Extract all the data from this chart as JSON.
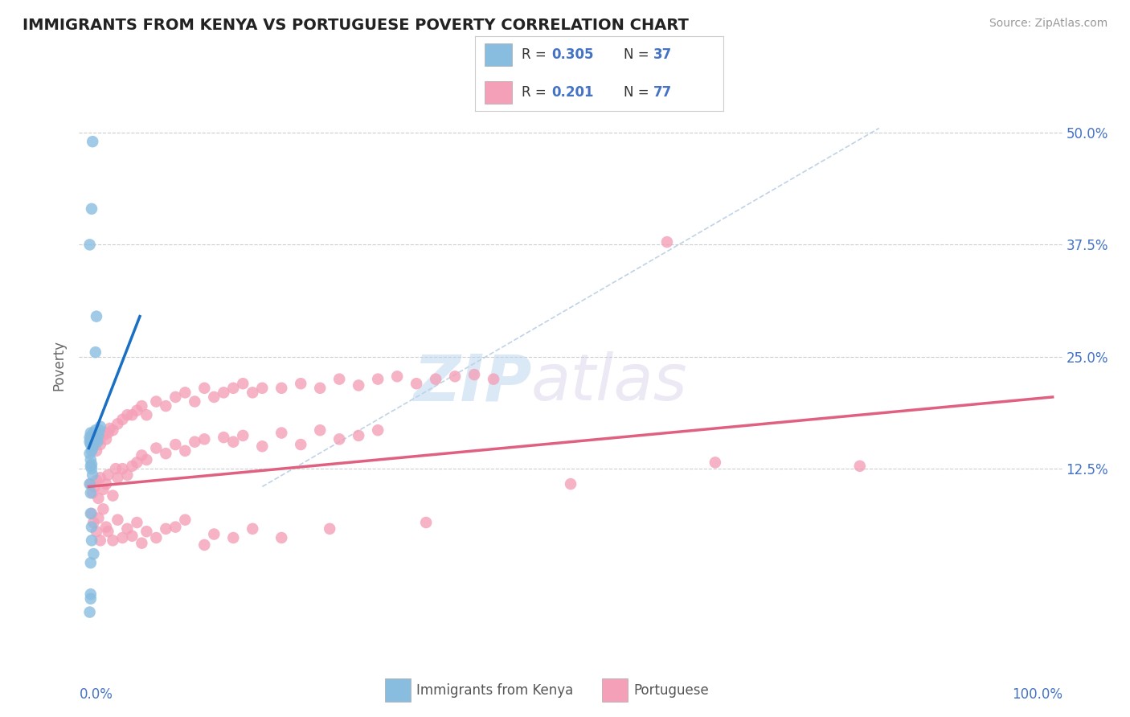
{
  "title": "IMMIGRANTS FROM KENYA VS PORTUGUESE POVERTY CORRELATION CHART",
  "source": "Source: ZipAtlas.com",
  "ylabel": "Poverty",
  "color_kenya": "#89bde0",
  "color_portuguese": "#f4a0b8",
  "color_kenya_line": "#1a6fc4",
  "color_portuguese_line": "#e06080",
  "color_dashed_line": "#b0c8e0",
  "watermark_zip": "ZIP",
  "watermark_atlas": "atlas",
  "xlim": [
    -0.01,
    1.01
  ],
  "ylim": [
    -0.08,
    0.56
  ],
  "ytick_values": [
    0.125,
    0.25,
    0.375,
    0.5
  ],
  "ytick_labels": [
    "12.5%",
    "25.0%",
    "37.5%",
    "50.0%"
  ],
  "kenya_trend_x": [
    0.0,
    0.053
  ],
  "kenya_trend_y": [
    0.148,
    0.295
  ],
  "portuguese_trend_x": [
    0.0,
    1.0
  ],
  "portuguese_trend_y": [
    0.105,
    0.205
  ],
  "dashed_line_x": [
    0.18,
    0.82
  ],
  "dashed_line_y": [
    0.105,
    0.505
  ],
  "kenya_scatter": [
    [
      0.001,
      0.155
    ],
    [
      0.001,
      0.16
    ],
    [
      0.002,
      0.165
    ],
    [
      0.002,
      0.158
    ],
    [
      0.002,
      0.152
    ],
    [
      0.003,
      0.16
    ],
    [
      0.003,
      0.145
    ],
    [
      0.003,
      0.162
    ],
    [
      0.003,
      0.155
    ],
    [
      0.004,
      0.148
    ],
    [
      0.004,
      0.15
    ],
    [
      0.004,
      0.158
    ],
    [
      0.005,
      0.162
    ],
    [
      0.005,
      0.158
    ],
    [
      0.005,
      0.165
    ],
    [
      0.006,
      0.16
    ],
    [
      0.006,
      0.155
    ],
    [
      0.007,
      0.162
    ],
    [
      0.007,
      0.168
    ],
    [
      0.008,
      0.158
    ],
    [
      0.009,
      0.155
    ],
    [
      0.01,
      0.162
    ],
    [
      0.011,
      0.168
    ],
    [
      0.012,
      0.172
    ],
    [
      0.001,
      0.142
    ],
    [
      0.002,
      0.135
    ],
    [
      0.002,
      0.128
    ],
    [
      0.003,
      0.125
    ],
    [
      0.003,
      0.13
    ],
    [
      0.004,
      0.118
    ],
    [
      0.001,
      0.108
    ],
    [
      0.002,
      0.098
    ],
    [
      0.002,
      0.075
    ],
    [
      0.003,
      0.06
    ],
    [
      0.003,
      0.045
    ],
    [
      0.002,
      -0.015
    ],
    [
      0.004,
      0.49
    ],
    [
      0.003,
      0.415
    ],
    [
      0.001,
      0.375
    ],
    [
      0.008,
      0.295
    ],
    [
      0.007,
      0.255
    ],
    [
      0.001,
      -0.035
    ],
    [
      0.002,
      -0.02
    ],
    [
      0.002,
      0.02
    ],
    [
      0.005,
      0.03
    ]
  ],
  "portuguese_scatter": [
    [
      0.005,
      0.155
    ],
    [
      0.008,
      0.145
    ],
    [
      0.01,
      0.158
    ],
    [
      0.012,
      0.152
    ],
    [
      0.015,
      0.162
    ],
    [
      0.018,
      0.158
    ],
    [
      0.02,
      0.165
    ],
    [
      0.022,
      0.17
    ],
    [
      0.025,
      0.168
    ],
    [
      0.03,
      0.175
    ],
    [
      0.035,
      0.18
    ],
    [
      0.04,
      0.185
    ],
    [
      0.045,
      0.185
    ],
    [
      0.05,
      0.19
    ],
    [
      0.055,
      0.195
    ],
    [
      0.06,
      0.185
    ],
    [
      0.07,
      0.2
    ],
    [
      0.08,
      0.195
    ],
    [
      0.09,
      0.205
    ],
    [
      0.1,
      0.21
    ],
    [
      0.11,
      0.2
    ],
    [
      0.12,
      0.215
    ],
    [
      0.13,
      0.205
    ],
    [
      0.14,
      0.21
    ],
    [
      0.15,
      0.215
    ],
    [
      0.16,
      0.22
    ],
    [
      0.17,
      0.21
    ],
    [
      0.18,
      0.215
    ],
    [
      0.2,
      0.215
    ],
    [
      0.22,
      0.22
    ],
    [
      0.24,
      0.215
    ],
    [
      0.26,
      0.225
    ],
    [
      0.28,
      0.218
    ],
    [
      0.3,
      0.225
    ],
    [
      0.32,
      0.228
    ],
    [
      0.34,
      0.22
    ],
    [
      0.36,
      0.225
    ],
    [
      0.38,
      0.228
    ],
    [
      0.4,
      0.23
    ],
    [
      0.42,
      0.225
    ],
    [
      0.6,
      0.378
    ],
    [
      0.002,
      0.108
    ],
    [
      0.004,
      0.098
    ],
    [
      0.006,
      0.105
    ],
    [
      0.008,
      0.112
    ],
    [
      0.01,
      0.092
    ],
    [
      0.012,
      0.115
    ],
    [
      0.015,
      0.102
    ],
    [
      0.018,
      0.108
    ],
    [
      0.02,
      0.118
    ],
    [
      0.025,
      0.095
    ],
    [
      0.028,
      0.125
    ],
    [
      0.03,
      0.115
    ],
    [
      0.035,
      0.125
    ],
    [
      0.04,
      0.118
    ],
    [
      0.045,
      0.128
    ],
    [
      0.05,
      0.132
    ],
    [
      0.055,
      0.14
    ],
    [
      0.06,
      0.135
    ],
    [
      0.07,
      0.148
    ],
    [
      0.08,
      0.142
    ],
    [
      0.09,
      0.152
    ],
    [
      0.1,
      0.145
    ],
    [
      0.11,
      0.155
    ],
    [
      0.12,
      0.158
    ],
    [
      0.14,
      0.16
    ],
    [
      0.15,
      0.155
    ],
    [
      0.16,
      0.162
    ],
    [
      0.18,
      0.15
    ],
    [
      0.2,
      0.165
    ],
    [
      0.22,
      0.152
    ],
    [
      0.24,
      0.168
    ],
    [
      0.26,
      0.158
    ],
    [
      0.28,
      0.162
    ],
    [
      0.3,
      0.168
    ],
    [
      0.003,
      0.075
    ],
    [
      0.005,
      0.065
    ],
    [
      0.008,
      0.055
    ],
    [
      0.01,
      0.07
    ],
    [
      0.012,
      0.045
    ],
    [
      0.015,
      0.08
    ],
    [
      0.018,
      0.06
    ],
    [
      0.02,
      0.055
    ],
    [
      0.025,
      0.045
    ],
    [
      0.03,
      0.068
    ],
    [
      0.035,
      0.048
    ],
    [
      0.04,
      0.058
    ],
    [
      0.045,
      0.05
    ],
    [
      0.05,
      0.065
    ],
    [
      0.055,
      0.042
    ],
    [
      0.06,
      0.055
    ],
    [
      0.07,
      0.048
    ],
    [
      0.08,
      0.058
    ],
    [
      0.09,
      0.06
    ],
    [
      0.1,
      0.068
    ],
    [
      0.12,
      0.04
    ],
    [
      0.13,
      0.052
    ],
    [
      0.15,
      0.048
    ],
    [
      0.17,
      0.058
    ],
    [
      0.2,
      0.048
    ],
    [
      0.25,
      0.058
    ],
    [
      0.35,
      0.065
    ],
    [
      0.5,
      0.108
    ],
    [
      0.65,
      0.132
    ],
    [
      0.8,
      0.128
    ]
  ]
}
